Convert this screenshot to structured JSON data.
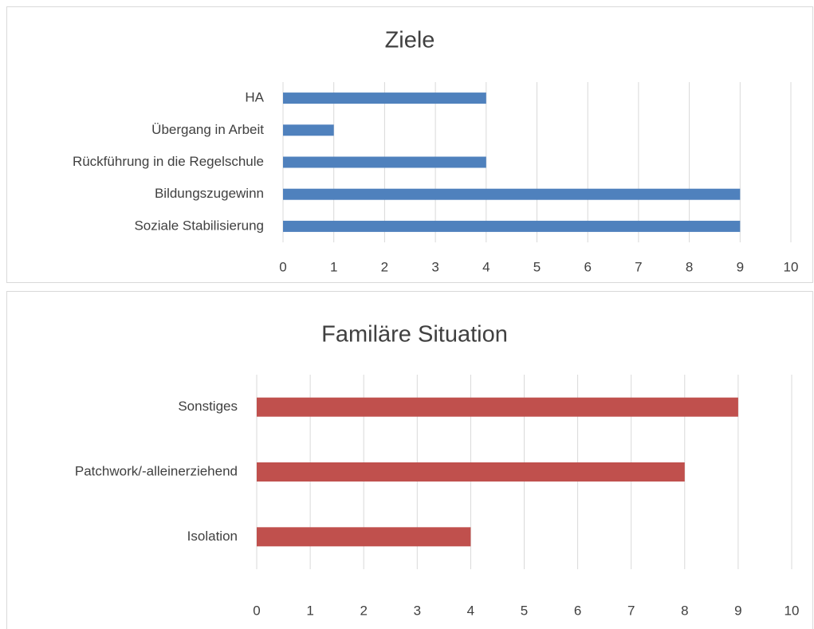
{
  "chart_data": [
    {
      "type": "bar",
      "orientation": "horizontal",
      "title": "Ziele",
      "categories": [
        "HA",
        "Übergang in Arbeit",
        "Rückführung in die Regelschule",
        "Bildungszugewinn",
        "Soziale Stabilisierung"
      ],
      "values": [
        4,
        1,
        4,
        9,
        9
      ],
      "color": "#4f81bd",
      "xlim": [
        0,
        10
      ],
      "xticks": [
        0,
        1,
        2,
        3,
        4,
        5,
        6,
        7,
        8,
        9,
        10
      ],
      "grid": true
    },
    {
      "type": "bar",
      "orientation": "horizontal",
      "title": "Familäre Situation",
      "categories": [
        "Sonstiges",
        "Patchwork/-alleinerziehend",
        "Isolation"
      ],
      "values": [
        9,
        8,
        4
      ],
      "color": "#c0504d",
      "xlim": [
        0,
        10
      ],
      "xticks": [
        0,
        1,
        2,
        3,
        4,
        5,
        6,
        7,
        8,
        9,
        10
      ],
      "grid": true
    }
  ]
}
